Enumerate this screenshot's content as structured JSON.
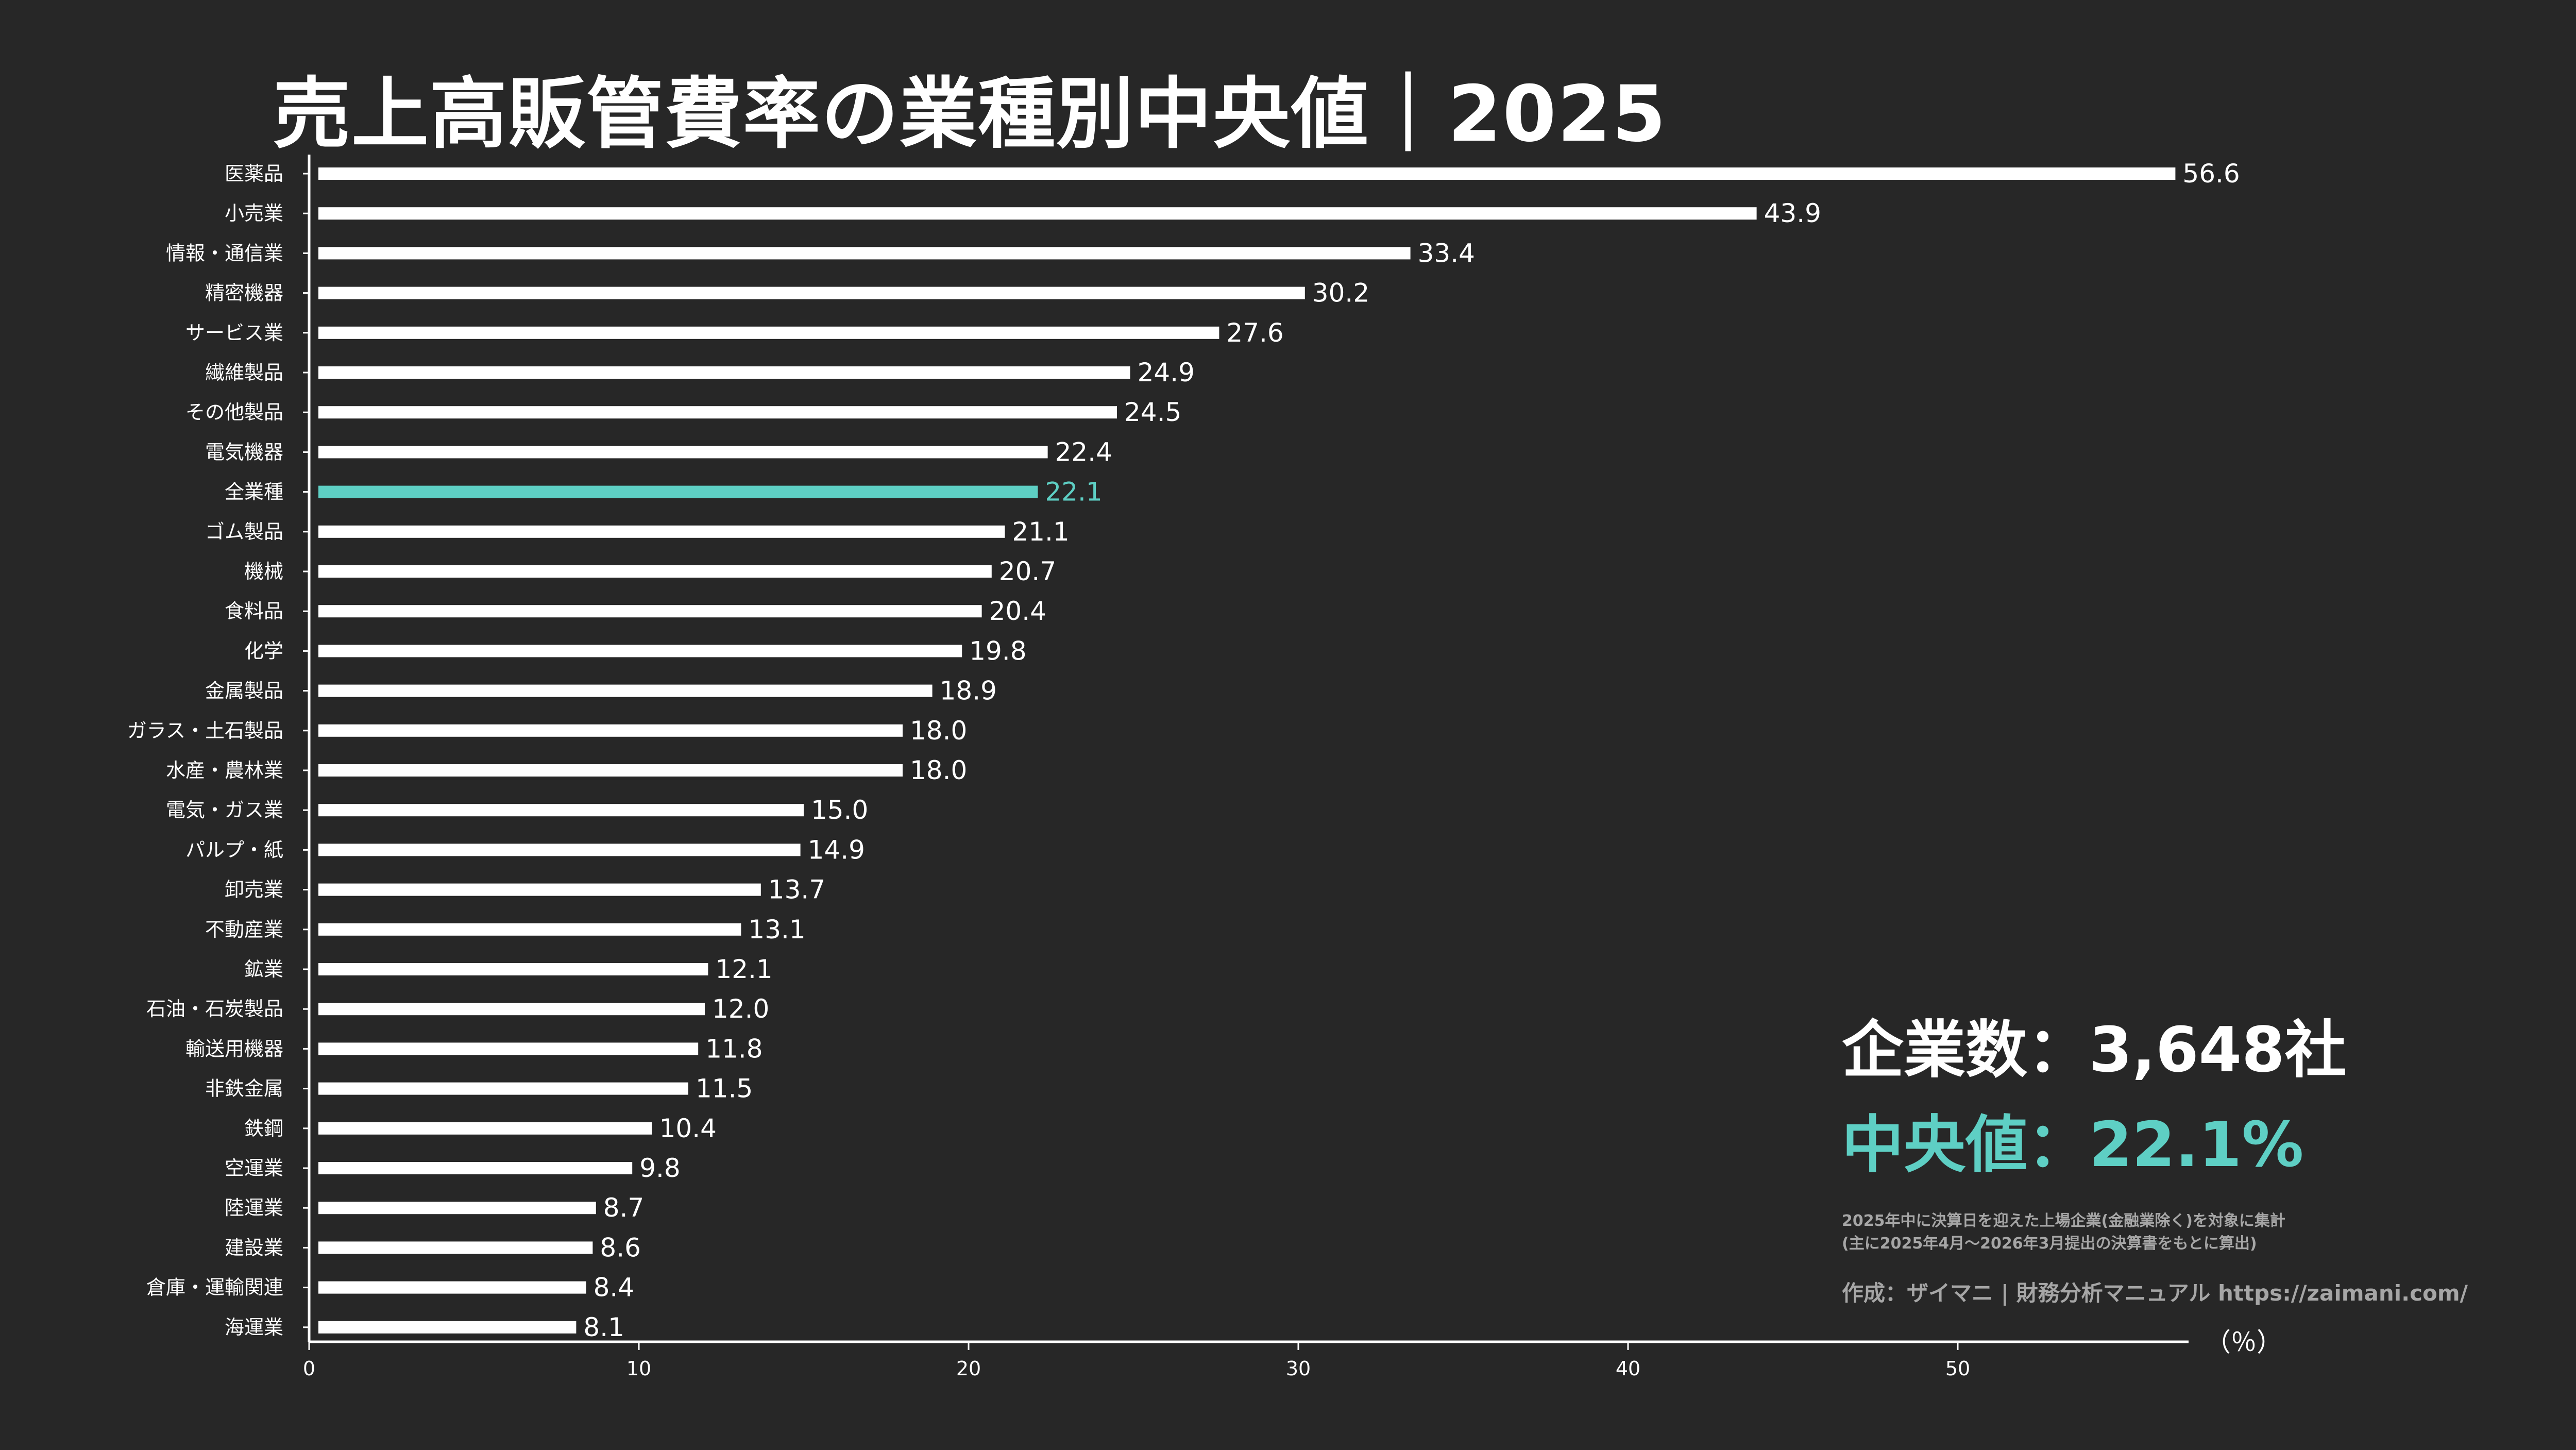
{
  "chart_data": {
    "type": "bar",
    "orientation": "horizontal",
    "title": "売上高販管費率の業種別中央値｜2025",
    "unit_label": "（％）",
    "xlim": [
      0,
      57
    ],
    "xticks": [
      0,
      10,
      20,
      30,
      40,
      50
    ],
    "highlight_category": "全業種",
    "highlight_color": "#5ecfc4",
    "bar_color": "#ffffff",
    "background_color": "#272727",
    "categories": [
      "医薬品",
      "小売業",
      "情報・通信業",
      "精密機器",
      "サービス業",
      "繊維製品",
      "その他製品",
      "電気機器",
      "全業種",
      "ゴム製品",
      "機械",
      "食料品",
      "化学",
      "金属製品",
      "ガラス・土石製品",
      "水産・農林業",
      "電気・ガス業",
      "パルプ・紙",
      "卸売業",
      "不動産業",
      "鉱業",
      "石油・石炭製品",
      "輸送用機器",
      "非鉄金属",
      "鉄鋼",
      "空運業",
      "陸運業",
      "建設業",
      "倉庫・運輸関連",
      "海運業"
    ],
    "values": [
      56.6,
      43.9,
      33.4,
      30.2,
      27.6,
      24.9,
      24.5,
      22.4,
      22.1,
      21.1,
      20.7,
      20.4,
      19.8,
      18.9,
      18.0,
      18.0,
      15.0,
      14.9,
      13.7,
      13.1,
      12.1,
      12.0,
      11.8,
      11.5,
      10.4,
      9.8,
      8.7,
      8.6,
      8.4,
      8.1
    ],
    "value_labels": [
      "56.6",
      "43.9",
      "33.4",
      "30.2",
      "27.6",
      "24.9",
      "24.5",
      "22.4",
      "22.1",
      "21.1",
      "20.7",
      "20.4",
      "19.8",
      "18.9",
      "18.0",
      "18.0",
      "15.0",
      "14.9",
      "13.7",
      "13.1",
      "12.1",
      "12.0",
      "11.8",
      "11.5",
      "10.4",
      "9.8",
      "8.7",
      "8.6",
      "8.4",
      "8.1"
    ]
  },
  "summary": {
    "company_count": "企業数：3,648社",
    "median": "中央値：22.1%",
    "note_line1": "2025年中に決算日を迎えた上場企業(金融業除く)を対象に集計",
    "note_line2": "(主に2025年4月〜2026年3月提出の決算書をもとに算出)",
    "credit": "作成：ザイマニ | 財務分析マニュアル https://zaimani.com/"
  }
}
